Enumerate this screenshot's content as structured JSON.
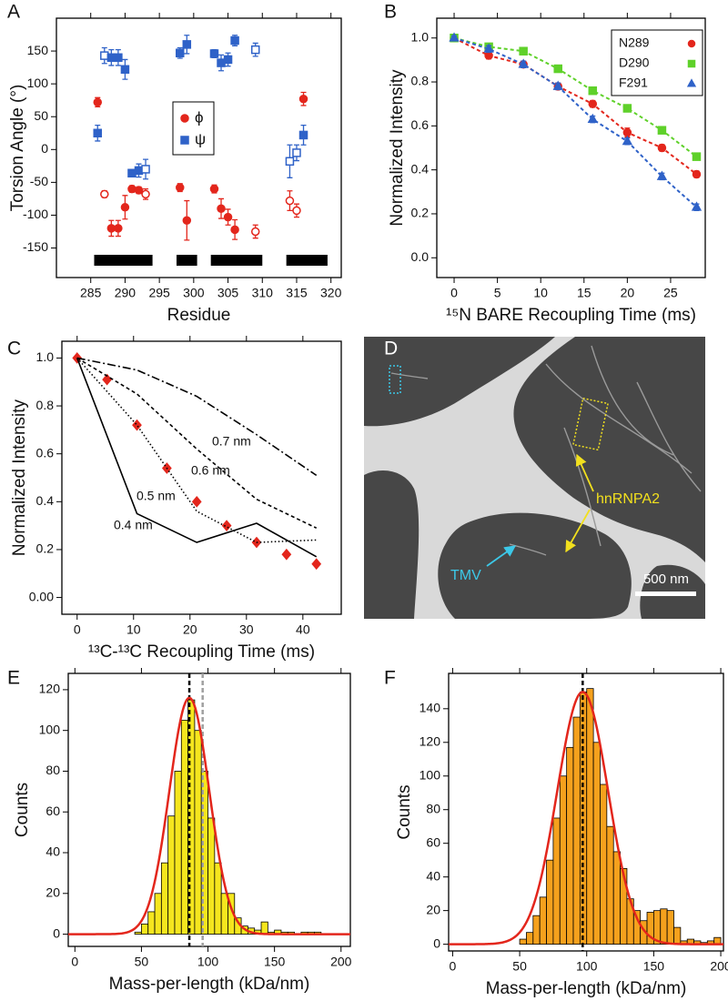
{
  "chart_data": [
    {
      "type": "scatter",
      "panel": "A",
      "xlabel": "Residue",
      "ylabel": "Torsion Angle (°)",
      "xlim": [
        280,
        321.5
      ],
      "ylim": [
        -195,
        200
      ],
      "xticks": [
        285,
        290,
        295,
        300,
        305,
        310,
        315,
        320
      ],
      "yticks": [
        -150,
        -100,
        -50,
        0,
        50,
        100,
        150
      ],
      "series": [
        {
          "name": "ϕ",
          "color": "#e3261c",
          "marker": "circle",
          "x": [
            286,
            287,
            288,
            289,
            290,
            291,
            292,
            293,
            298,
            299,
            303,
            304,
            305,
            306,
            309,
            314,
            315,
            316
          ],
          "values": [
            72,
            -68,
            -120,
            -120,
            -88,
            -60,
            -62,
            -68,
            -58,
            -108,
            -60,
            -90,
            -103,
            -122,
            -125,
            -78,
            -93,
            77
          ],
          "errors": [
            7,
            5,
            12,
            12,
            18,
            5,
            5,
            8,
            6,
            30,
            6,
            15,
            12,
            15,
            10,
            15,
            10,
            10
          ],
          "hollow": [
            false,
            true,
            false,
            false,
            false,
            false,
            false,
            true,
            false,
            false,
            false,
            false,
            false,
            false,
            true,
            true,
            true,
            false
          ]
        },
        {
          "name": "ψ",
          "color": "#2f62c8",
          "marker": "square",
          "x": [
            286,
            287,
            288,
            289,
            290,
            291,
            292,
            293,
            298,
            299,
            303,
            304,
            305,
            306,
            309,
            314,
            315,
            316
          ],
          "values": [
            25,
            143,
            140,
            140,
            122,
            -36,
            -32,
            -30,
            147,
            160,
            146,
            132,
            137,
            166,
            152,
            -18,
            -5,
            22
          ],
          "errors": [
            12,
            12,
            12,
            12,
            15,
            5,
            10,
            15,
            8,
            14,
            6,
            12,
            10,
            8,
            10,
            25,
            12,
            15
          ],
          "hollow": [
            false,
            true,
            false,
            false,
            false,
            false,
            false,
            true,
            false,
            false,
            false,
            false,
            false,
            false,
            true,
            true,
            true,
            false
          ]
        }
      ],
      "regions": [
        [
          285.5,
          294
        ],
        [
          297.5,
          300.5
        ],
        [
          302.5,
          310
        ],
        [
          313.5,
          319.5
        ]
      ],
      "regions_color": "#000000"
    },
    {
      "type": "scatter",
      "panel": "B",
      "xlabel": "¹⁵N BARE Recoupling Time (ms)",
      "ylabel": "Normalized Intensity",
      "xlim": [
        -2,
        29
      ],
      "ylim": [
        -0.09,
        1.09
      ],
      "xticks": [
        0,
        5,
        10,
        15,
        20,
        25
      ],
      "yticks": [
        {
          "value": 0,
          "label": "0.0"
        },
        0.2,
        0.4,
        0.6,
        0.8,
        {
          "value": 1,
          "label": "1.0"
        }
      ],
      "legend": "upper right",
      "fit_lines": true,
      "series": [
        {
          "name": "N289",
          "color": "#e3261c",
          "marker": "circle",
          "x": [
            0,
            4,
            8,
            12,
            16,
            20,
            24,
            28
          ],
          "values": [
            1.0,
            0.92,
            0.88,
            0.78,
            0.7,
            0.57,
            0.5,
            0.38
          ],
          "errors": [
            0.01,
            0.015,
            0.015,
            0.015,
            0.015,
            0.02,
            0.015,
            0.015
          ]
        },
        {
          "name": "D290",
          "color": "#5fd12a",
          "marker": "square",
          "x": [
            0,
            4,
            8,
            12,
            16,
            20,
            24,
            28
          ],
          "values": [
            1.0,
            0.96,
            0.94,
            0.86,
            0.76,
            0.68,
            0.58,
            0.46
          ],
          "errors": [
            0.01,
            0.015,
            0.015,
            0.015,
            0.015,
            0.015,
            0.015,
            0.015
          ]
        },
        {
          "name": "F291",
          "color": "#2f62c8",
          "marker": "triangle",
          "x": [
            0,
            4,
            8,
            12,
            16,
            20,
            24,
            28
          ],
          "values": [
            1.0,
            0.95,
            0.88,
            0.78,
            0.63,
            0.53,
            0.37,
            0.23
          ],
          "errors": [
            0.01,
            0.015,
            0.015,
            0.015,
            0.015,
            0.015,
            0.015,
            0.015
          ]
        }
      ]
    },
    {
      "type": "line",
      "panel": "C",
      "xlabel": "¹³C-¹³C Recoupling Time (ms)",
      "ylabel": "Normalized Intensity",
      "xlim": [
        -2.7,
        46.8
      ],
      "ylim": [
        -0.07,
        1.07
      ],
      "xticks": [
        0,
        10,
        20,
        30,
        40
      ],
      "yticks": [
        {
          "value": 0,
          "label": "0.00"
        },
        0.2,
        0.4,
        0.6,
        0.8,
        {
          "value": 1,
          "label": "1.0"
        }
      ],
      "series": [
        {
          "color": "#e3261c",
          "marker": "diamond",
          "x": [
            0,
            5.3,
            10.6,
            15.9,
            21.2,
            26.5,
            31.8,
            37.1,
            42.4
          ],
          "values": [
            1.0,
            0.91,
            0.72,
            0.54,
            0.4,
            0.3,
            0.23,
            0.18,
            0.14
          ]
        },
        {
          "name": "0.7 nm",
          "color": "#000000",
          "dash": "9 3 2 3",
          "x": [
            0,
            10.6,
            21.2,
            31.8,
            42.4
          ],
          "values": [
            1.0,
            0.95,
            0.84,
            0.68,
            0.51
          ]
        },
        {
          "name": "0.6 nm",
          "color": "#000000",
          "dash": "4 3",
          "x": [
            0,
            10.6,
            21.2,
            31.8,
            42.4
          ],
          "values": [
            1.0,
            0.85,
            0.62,
            0.41,
            0.29
          ]
        },
        {
          "name": "0.5 nm",
          "color": "#000000",
          "dash": "1.5 2.5",
          "x": [
            0,
            10.6,
            21.2,
            31.8,
            42.4
          ],
          "values": [
            1.0,
            0.72,
            0.36,
            0.23,
            0.24
          ]
        },
        {
          "name": "0.4 nm",
          "color": "#000000",
          "dash": "none",
          "x": [
            0,
            10.6,
            21.2,
            31.8,
            42.4
          ],
          "values": [
            1.0,
            0.35,
            0.23,
            0.31,
            0.17
          ]
        }
      ]
    },
    {
      "type": "image",
      "panel": "D",
      "annotations": [
        {
          "label": "hnRNPA2",
          "color": "#f2e01e"
        },
        {
          "label": "TMV",
          "color": "#3cc8e8"
        }
      ],
      "scalebar": "500 nm"
    },
    {
      "type": "histogram",
      "panel": "E",
      "xlabel": "Mass-per-length (kDa/nm)",
      "ylabel": "Counts",
      "xlim": [
        -5,
        207
      ],
      "ylim": [
        -6,
        128
      ],
      "xticks": [
        0,
        50,
        100,
        150,
        200
      ],
      "yticks": [
        0,
        20,
        40,
        60,
        80,
        100,
        120
      ],
      "bins": [
        45,
        50,
        55,
        60,
        65,
        70,
        75,
        80,
        85,
        90,
        95,
        100,
        105,
        110,
        115,
        120,
        125,
        130,
        135,
        140,
        145,
        150,
        155,
        160,
        165,
        170,
        175,
        180,
        185,
        190
      ],
      "counts": [
        1,
        5,
        11,
        20,
        35,
        58,
        80,
        105,
        115,
        100,
        80,
        57,
        35,
        20,
        20,
        8,
        4,
        3,
        2,
        6,
        1,
        2,
        1,
        1,
        0,
        1,
        1,
        1,
        0
      ],
      "color": "#f5e61e",
      "fit": {
        "mean": 86,
        "sd": 15,
        "amplitude": 116,
        "color": "#e3261c"
      },
      "vlines": [
        {
          "value": 86,
          "color": "#000000"
        },
        {
          "value": 96,
          "color": "#a0a0a0"
        }
      ]
    },
    {
      "type": "histogram",
      "panel": "F",
      "xlabel": "Mass-per-length (kDa/nm)",
      "ylabel": "Counts",
      "xlim": [
        -3,
        202
      ],
      "ylim": [
        -4,
        161
      ],
      "xticks": [
        0,
        50,
        100,
        150,
        200
      ],
      "yticks": [
        0,
        20,
        40,
        60,
        80,
        100,
        120,
        140
      ],
      "bins": [
        45,
        50,
        55,
        60,
        65,
        70,
        75,
        80,
        85,
        90,
        95,
        100,
        105,
        110,
        115,
        120,
        125,
        130,
        135,
        140,
        145,
        150,
        155,
        160,
        165,
        170,
        175,
        180,
        185,
        190,
        195,
        200
      ],
      "counts": [
        0,
        3,
        7,
        17,
        28,
        50,
        75,
        100,
        117,
        135,
        150,
        152,
        120,
        95,
        70,
        55,
        45,
        27,
        20,
        14,
        19,
        20,
        21,
        20,
        10,
        2,
        3,
        2,
        1,
        2,
        4
      ],
      "color": "#f5a11d",
      "fit": {
        "mean": 97,
        "sd": 19,
        "amplitude": 150,
        "color": "#e3261c"
      },
      "vlines": [
        {
          "value": 97,
          "color": "#000000"
        }
      ]
    }
  ]
}
